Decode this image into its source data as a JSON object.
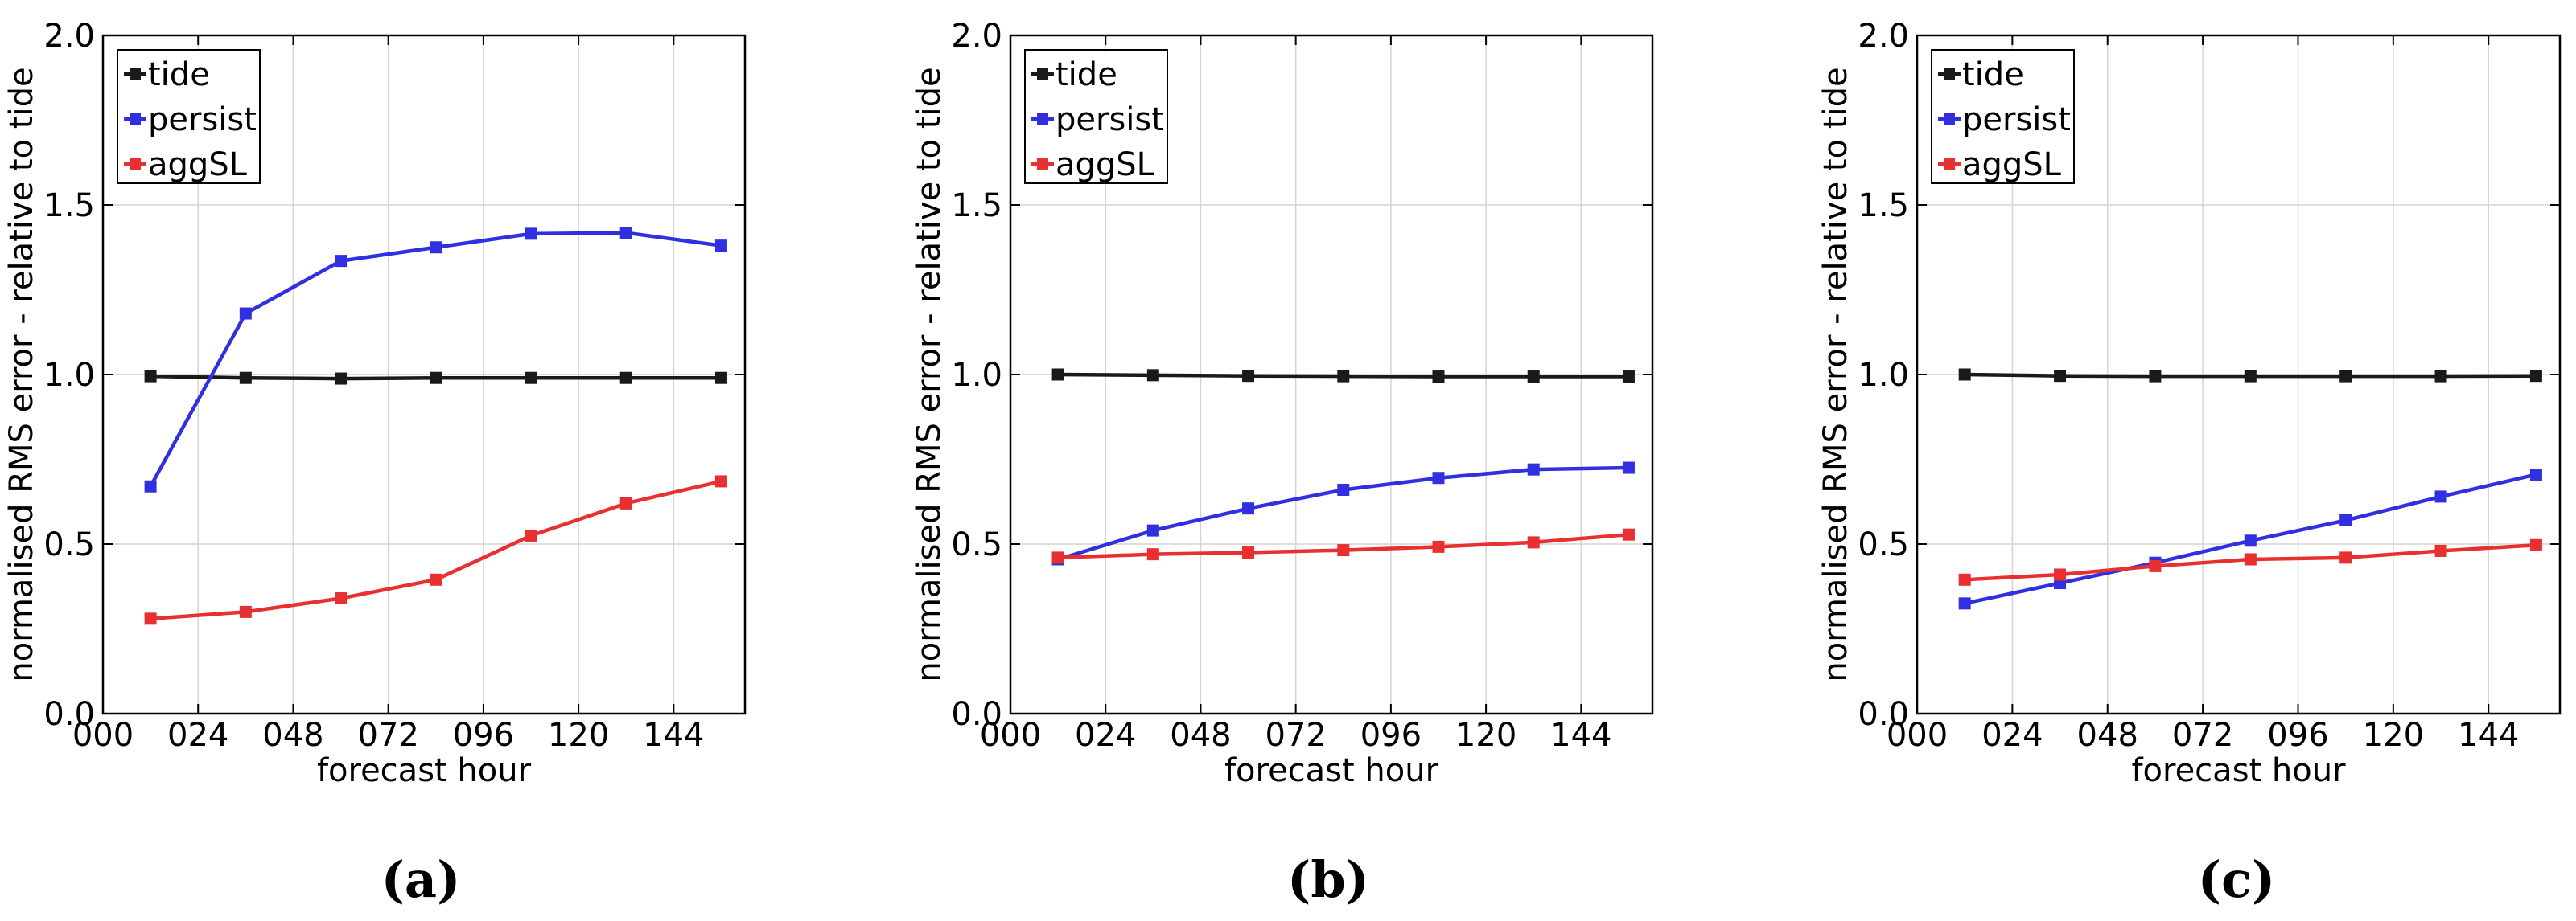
{
  "chart_data": [
    {
      "type": "line",
      "caption": "(a)",
      "xlabel": "forecast hour",
      "ylabel": "normalised RMS error - relative to tide",
      "xlim": [
        0,
        162
      ],
      "ylim": [
        0.0,
        2.0
      ],
      "xticks": [
        0,
        24,
        48,
        72,
        96,
        120,
        144
      ],
      "xtick_labels": [
        "000",
        "024",
        "048",
        "072",
        "096",
        "120",
        "144"
      ],
      "yticks": [
        0.0,
        0.5,
        1.0,
        1.5,
        2.0
      ],
      "ytick_labels": [
        "0.0",
        "0.5",
        "1.0",
        "1.5",
        "2.0"
      ],
      "grid": true,
      "legend_position": "top-left",
      "x": [
        12,
        36,
        60,
        84,
        108,
        132,
        156
      ],
      "series": [
        {
          "name": "tide",
          "color": "#1a1a1a",
          "values": [
            0.995,
            0.99,
            0.988,
            0.99,
            0.99,
            0.99,
            0.99
          ]
        },
        {
          "name": "persist",
          "color": "#3030e0",
          "values": [
            0.67,
            1.18,
            1.335,
            1.375,
            1.415,
            1.418,
            1.38
          ]
        },
        {
          "name": "aggSL",
          "color": "#e83030",
          "values": [
            0.28,
            0.3,
            0.34,
            0.395,
            0.525,
            0.62,
            0.685
          ]
        }
      ]
    },
    {
      "type": "line",
      "caption": "(b)",
      "xlabel": "forecast hour",
      "ylabel": "normalised RMS error - relative to tide",
      "xlim": [
        0,
        162
      ],
      "ylim": [
        0.0,
        2.0
      ],
      "xticks": [
        0,
        24,
        48,
        72,
        96,
        120,
        144
      ],
      "xtick_labels": [
        "000",
        "024",
        "048",
        "072",
        "096",
        "120",
        "144"
      ],
      "yticks": [
        0.0,
        0.5,
        1.0,
        1.5,
        2.0
      ],
      "ytick_labels": [
        "0.0",
        "0.5",
        "1.0",
        "1.5",
        "2.0"
      ],
      "grid": true,
      "legend_position": "top-left",
      "x": [
        12,
        36,
        60,
        84,
        108,
        132,
        156
      ],
      "series": [
        {
          "name": "tide",
          "color": "#1a1a1a",
          "values": [
            1.0,
            0.998,
            0.996,
            0.995,
            0.994,
            0.994,
            0.994
          ]
        },
        {
          "name": "persist",
          "color": "#3030e0",
          "values": [
            0.455,
            0.54,
            0.605,
            0.66,
            0.695,
            0.72,
            0.725
          ]
        },
        {
          "name": "aggSL",
          "color": "#e83030",
          "values": [
            0.46,
            0.47,
            0.475,
            0.482,
            0.492,
            0.505,
            0.528
          ]
        }
      ]
    },
    {
      "type": "line",
      "caption": "(c)",
      "xlabel": "forecast hour",
      "ylabel": "normalised RMS error - relative to tide",
      "xlim": [
        0,
        162
      ],
      "ylim": [
        0.0,
        2.0
      ],
      "xticks": [
        0,
        24,
        48,
        72,
        96,
        120,
        144
      ],
      "xtick_labels": [
        "000",
        "024",
        "048",
        "072",
        "096",
        "120",
        "144"
      ],
      "yticks": [
        0.0,
        0.5,
        1.0,
        1.5,
        2.0
      ],
      "ytick_labels": [
        "0.0",
        "0.5",
        "1.0",
        "1.5",
        "2.0"
      ],
      "grid": true,
      "legend_position": "top-left",
      "x": [
        12,
        36,
        60,
        84,
        108,
        132,
        156
      ],
      "series": [
        {
          "name": "tide",
          "color": "#1a1a1a",
          "values": [
            1.0,
            0.996,
            0.995,
            0.995,
            0.995,
            0.995,
            0.996
          ]
        },
        {
          "name": "persist",
          "color": "#3030e0",
          "values": [
            0.325,
            0.385,
            0.445,
            0.51,
            0.57,
            0.64,
            0.705
          ]
        },
        {
          "name": "aggSL",
          "color": "#e83030",
          "values": [
            0.395,
            0.41,
            0.435,
            0.455,
            0.46,
            0.48,
            0.497
          ]
        }
      ]
    }
  ]
}
